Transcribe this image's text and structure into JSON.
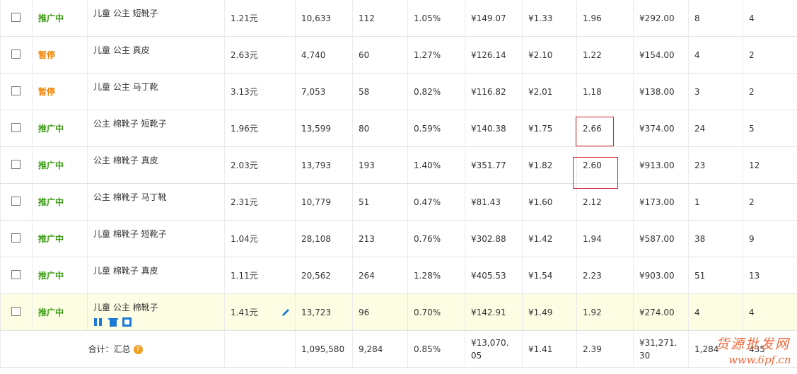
{
  "table": {
    "rows": [
      [
        "推广中",
        "儿童 公主 短靴子",
        "1.21元",
        "10,633",
        "112",
        "1.05%",
        "¥149.07",
        "¥1.33",
        "1.96",
        "¥292.00",
        "8",
        "4"
      ],
      [
        "暂停",
        "儿童 公主 真皮",
        "2.63元",
        "4,740",
        "60",
        "1.27%",
        "¥126.14",
        "¥2.10",
        "1.22",
        "¥154.00",
        "4",
        "2"
      ],
      [
        "暂停",
        "儿童 公主 马丁靴",
        "3.13元",
        "7,053",
        "58",
        "0.82%",
        "¥116.82",
        "¥2.01",
        "1.18",
        "¥138.00",
        "3",
        "2"
      ],
      [
        "推广中",
        "公主 棉靴子 短靴子",
        "1.96元",
        "13,599",
        "80",
        "0.59%",
        "¥140.38",
        "¥1.75",
        "2.66",
        "¥374.00",
        "24",
        "5"
      ],
      [
        "推广中",
        "公主 棉靴子 真皮",
        "2.03元",
        "13,793",
        "193",
        "1.40%",
        "¥351.77",
        "¥1.82",
        "2.60",
        "¥913.00",
        "23",
        "12"
      ],
      [
        "推广中",
        "公主 棉靴子 马丁靴",
        "2.31元",
        "10,779",
        "51",
        "0.47%",
        "¥81.43",
        "¥1.60",
        "2.12",
        "¥173.00",
        "1",
        "2"
      ],
      [
        "推广中",
        "儿童 棉靴子 短靴子",
        "1.04元",
        "28,108",
        "213",
        "0.76%",
        "¥302.88",
        "¥1.42",
        "1.94",
        "¥587.00",
        "38",
        "9"
      ],
      [
        "推广中",
        "儿童 棉靴子 真皮",
        "1.11元",
        "20,562",
        "264",
        "1.28%",
        "¥405.53",
        "¥1.54",
        "2.23",
        "¥903.00",
        "51",
        "13"
      ],
      [
        "推广中",
        "儿童 公主 棉靴子",
        "1.41元",
        "13,723",
        "96",
        "0.70%",
        "¥142.91",
        "¥1.49",
        "1.92",
        "¥274.00",
        "4",
        "4"
      ]
    ],
    "summary": [
      "合计：汇总",
      "1,095,580",
      "9,284",
      "0.85%",
      "¥13,070.05",
      "¥1.41",
      "2.39",
      "¥31,271.30",
      "1,284",
      "435"
    ]
  },
  "watermark": {
    "name": "货源批发网",
    "url": "www.6pf.cn"
  }
}
